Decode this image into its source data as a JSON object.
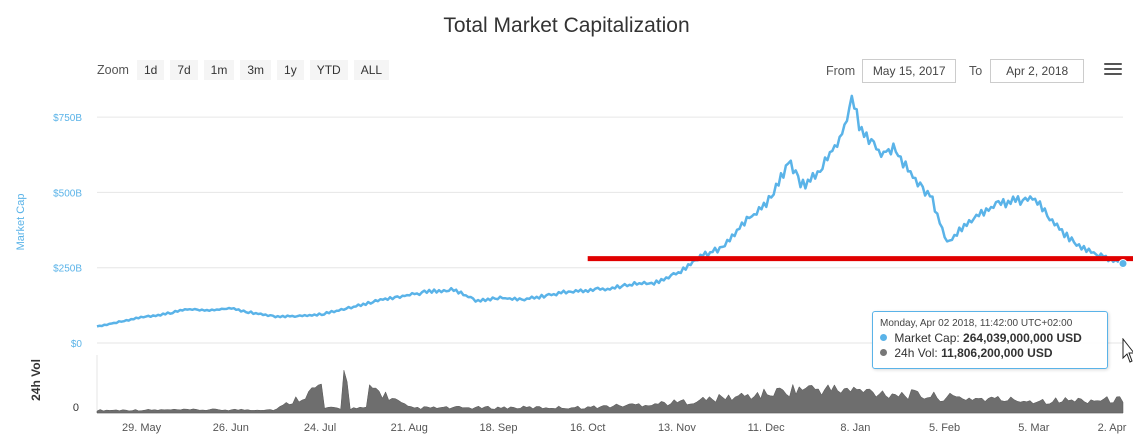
{
  "title": "Total Market Capitalization",
  "zoom": {
    "label": "Zoom",
    "buttons": [
      "1d",
      "7d",
      "1m",
      "3m",
      "1y",
      "YTD",
      "ALL"
    ]
  },
  "range": {
    "from_label": "From",
    "from_value": "May 15, 2017",
    "to_label": "To",
    "to_value": "Apr 2, 2018"
  },
  "colors": {
    "market_cap": "#5ab3e8",
    "volume": "#777777",
    "highlight_line": "#e00000",
    "grid": "#e6e6e6"
  },
  "tooltip": {
    "date": "Monday, Apr 02 2018, 11:42:00 UTC+02:00",
    "market_cap_label": "Market Cap:",
    "market_cap_value": "264,039,000,000 USD",
    "vol_label": "24h Vol:",
    "vol_value": "11,806,200,000 USD"
  },
  "chart_data": {
    "type": "line",
    "title": "Total Market Capitalization",
    "x_range": [
      "2017-05-15",
      "2018-04-02"
    ],
    "x_ticks": [
      "29. May",
      "26. Jun",
      "24. Jul",
      "21. Aug",
      "18. Sep",
      "16. Oct",
      "13. Nov",
      "11. Dec",
      "8. Jan",
      "5. Feb",
      "5. Mar",
      "2. Apr"
    ],
    "y_ticks": [
      "$0",
      "$250B",
      "$500B",
      "$750B"
    ],
    "ylabel": "Market Cap",
    "ylim": [
      0,
      870
    ],
    "y_unit": "billion USD",
    "series": [
      {
        "name": "Market Cap",
        "x": [
          "2017-05-15",
          "2017-05-22",
          "2017-05-29",
          "2017-06-05",
          "2017-06-12",
          "2017-06-19",
          "2017-06-26",
          "2017-07-03",
          "2017-07-10",
          "2017-07-17",
          "2017-07-24",
          "2017-07-31",
          "2017-08-07",
          "2017-08-14",
          "2017-08-21",
          "2017-08-28",
          "2017-09-04",
          "2017-09-11",
          "2017-09-18",
          "2017-09-25",
          "2017-10-02",
          "2017-10-09",
          "2017-10-16",
          "2017-10-23",
          "2017-10-30",
          "2017-11-06",
          "2017-11-13",
          "2017-11-20",
          "2017-11-27",
          "2017-12-04",
          "2017-12-11",
          "2017-12-18",
          "2017-12-22",
          "2017-12-28",
          "2018-01-04",
          "2018-01-07",
          "2018-01-10",
          "2018-01-16",
          "2018-01-20",
          "2018-01-27",
          "2018-02-01",
          "2018-02-06",
          "2018-02-12",
          "2018-02-20",
          "2018-02-26",
          "2018-03-05",
          "2018-03-12",
          "2018-03-19",
          "2018-03-26",
          "2018-04-02"
        ],
        "values": [
          55,
          70,
          85,
          95,
          112,
          108,
          115,
          100,
          88,
          90,
          95,
          110,
          130,
          148,
          160,
          172,
          178,
          140,
          150,
          145,
          155,
          170,
          175,
          180,
          195,
          200,
          230,
          285,
          315,
          400,
          460,
          600,
          520,
          570,
          700,
          820,
          700,
          630,
          650,
          540,
          480,
          330,
          400,
          450,
          470,
          480,
          390,
          320,
          290,
          264
        ]
      },
      {
        "name": "24h Vol",
        "axis_ticks": [
          "0"
        ],
        "axis_label": "24h Vol",
        "x": [
          "2017-05-15",
          "2017-06-12",
          "2017-07-10",
          "2017-08-01",
          "2017-08-21",
          "2017-09-18",
          "2017-10-16",
          "2017-11-13",
          "2017-12-11",
          "2017-12-22",
          "2018-01-08",
          "2018-02-05",
          "2018-03-05",
          "2018-04-02"
        ],
        "values": [
          2.5,
          2.8,
          3.0,
          35,
          4.5,
          4.8,
          5.0,
          9.5,
          17,
          22,
          20,
          14,
          11,
          11.8
        ]
      }
    ],
    "annotations": [
      {
        "type": "horizontal_line",
        "y": 280,
        "x_start": "2017-10-16",
        "x_end": "2018-04-02",
        "color": "#e00000"
      }
    ],
    "grid": true,
    "legend": "none"
  }
}
